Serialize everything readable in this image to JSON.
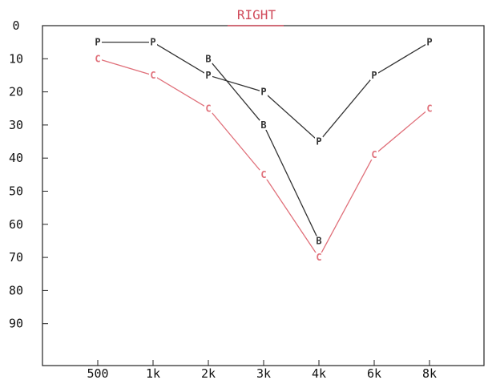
{
  "chart_data": {
    "type": "line",
    "title": "RIGHT",
    "title_color": "#d04a5a",
    "xlabel": "",
    "ylabel": "",
    "categories": [
      "500",
      "1k",
      "2k",
      "3k",
      "4k",
      "6k",
      "8k"
    ],
    "y_ticks": [
      "0",
      "10",
      "20",
      "30",
      "40",
      "50",
      "60",
      "70",
      "80",
      "90"
    ],
    "ylim": [
      0,
      100
    ],
    "y_inverted": true,
    "grid": false,
    "series": [
      {
        "marker": "P",
        "color": "#333333",
        "points": [
          {
            "x": "500",
            "y": 5
          },
          {
            "x": "1k",
            "y": 5
          },
          {
            "x": "2k",
            "y": 15
          },
          {
            "x": "3k",
            "y": 20
          },
          {
            "x": "4k",
            "y": 35
          },
          {
            "x": "6k",
            "y": 15
          },
          {
            "x": "8k",
            "y": 5
          }
        ]
      },
      {
        "marker": "B",
        "color": "#333333",
        "points": [
          {
            "x": "2k",
            "y": 10
          },
          {
            "x": "3k",
            "y": 30
          },
          {
            "x": "4k",
            "y": 65
          }
        ]
      },
      {
        "marker": "C",
        "color": "#e0707a",
        "points": [
          {
            "x": "500",
            "y": 10
          },
          {
            "x": "1k",
            "y": 15
          },
          {
            "x": "2k",
            "y": 25
          },
          {
            "x": "3k",
            "y": 45
          },
          {
            "x": "4k",
            "y": 70
          },
          {
            "x": "6k",
            "y": 39
          },
          {
            "x": "8k",
            "y": 25
          }
        ]
      }
    ]
  }
}
